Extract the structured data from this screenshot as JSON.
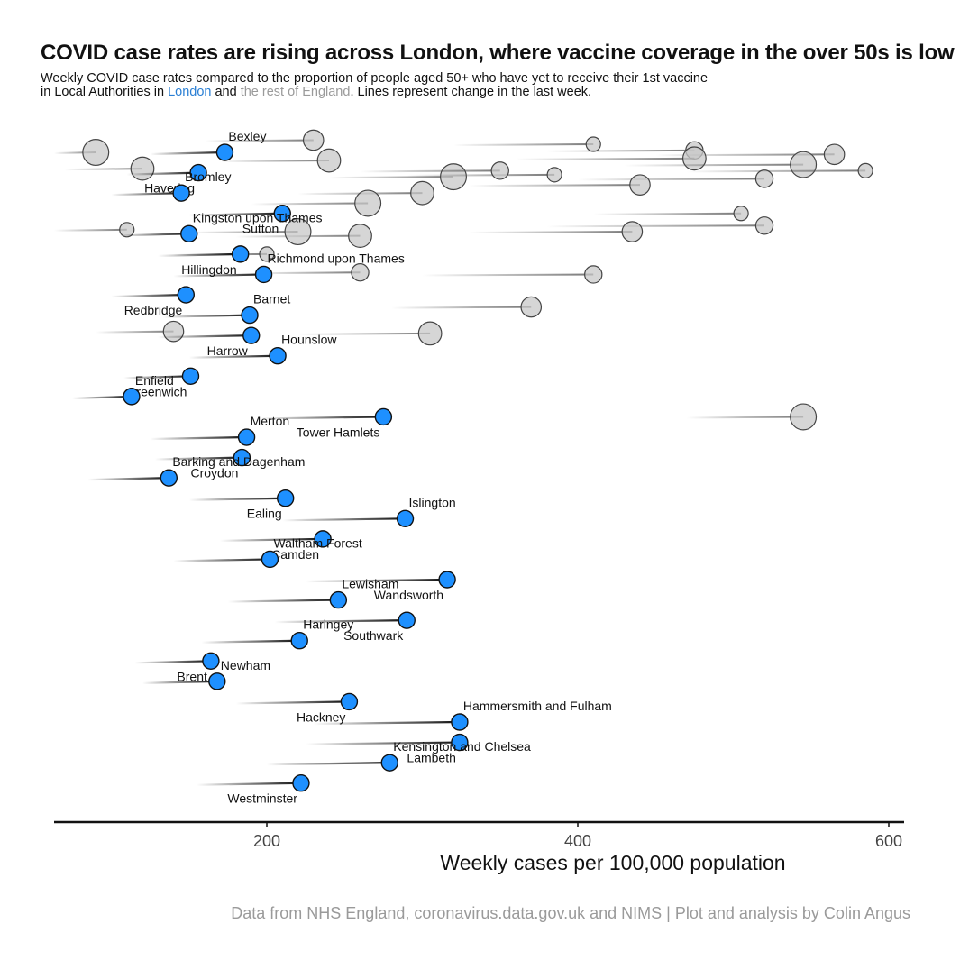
{
  "title": "COVID case rates are rising across London, where vaccine coverage in the over 50s is low",
  "subtitle": {
    "part1": "Weekly COVID case rates compared to the proportion of people aged 50+ who have yet to receive their 1st vaccine",
    "part2": "in Local Authorities in",
    "london": "London",
    "and": "and",
    "rest": "the rest of England",
    "part3": ". Lines represent change in the last week."
  },
  "caption": "Data from NHS England, coronavirus.data.gov.uk and NIMS | Plot and analysis by Colin Angus",
  "colors": {
    "london": "#1e90ff",
    "rest": "#c8c8c8",
    "london_text": "#2a7fd4",
    "rest_text": "#9a9a9a"
  },
  "chart_data": {
    "type": "scatter",
    "xlabel": "Weekly cases per 100,000 population",
    "ylabel": "",
    "xlim": [
      60,
      600
    ],
    "xticks": [
      "200",
      "400",
      "600"
    ],
    "grid": false,
    "london": [
      {
        "name": "Bexley",
        "x": 173,
        "x_prev": 125,
        "rank": 1
      },
      {
        "name": "Havering",
        "x": 156,
        "x_prev": 110,
        "rank": 2
      },
      {
        "name": "Bromley",
        "x": 145,
        "x_prev": 100,
        "rank": 3
      },
      {
        "name": "Sutton",
        "x": 210,
        "x_prev": 150,
        "rank": 4
      },
      {
        "name": "Kingston upon Thames",
        "x": 150,
        "x_prev": 105,
        "rank": 5
      },
      {
        "name": "Hillingdon",
        "x": 183,
        "x_prev": 130,
        "rank": 6
      },
      {
        "name": "Richmond upon Thames",
        "x": 198,
        "x_prev": 140,
        "rank": 7
      },
      {
        "name": "Redbridge",
        "x": 148,
        "x_prev": 100,
        "rank": 8
      },
      {
        "name": "Barnet",
        "x": 189,
        "x_prev": 133,
        "rank": 9
      },
      {
        "name": "Harrow",
        "x": 190,
        "x_prev": 130,
        "rank": 10
      },
      {
        "name": "Hounslow",
        "x": 207,
        "x_prev": 150,
        "rank": 11
      },
      {
        "name": "Greenwich",
        "x": 151,
        "x_prev": 108,
        "rank": 12
      },
      {
        "name": "Enfield",
        "x": 113,
        "x_prev": 75,
        "rank": 13
      },
      {
        "name": "Tower Hamlets",
        "x": 275,
        "x_prev": 195,
        "rank": 14
      },
      {
        "name": "Merton",
        "x": 187,
        "x_prev": 125,
        "rank": 15
      },
      {
        "name": "Croydon",
        "x": 184,
        "x_prev": 128,
        "rank": 16
      },
      {
        "name": "Barking and Dagenham",
        "x": 137,
        "x_prev": 85,
        "rank": 17
      },
      {
        "name": "Ealing",
        "x": 212,
        "x_prev": 150,
        "rank": 18
      },
      {
        "name": "Islington",
        "x": 289,
        "x_prev": 210,
        "rank": 19
      },
      {
        "name": "Camden",
        "x": 236,
        "x_prev": 170,
        "rank": 20
      },
      {
        "name": "Waltham Forest",
        "x": 202,
        "x_prev": 140,
        "rank": 21
      },
      {
        "name": "Wandsworth",
        "x": 316,
        "x_prev": 225,
        "rank": 22
      },
      {
        "name": "Lewisham",
        "x": 246,
        "x_prev": 175,
        "rank": 23
      },
      {
        "name": "Southwark",
        "x": 290,
        "x_prev": 205,
        "rank": 24
      },
      {
        "name": "Haringey",
        "x": 221,
        "x_prev": 158,
        "rank": 25
      },
      {
        "name": "Brent",
        "x": 164,
        "x_prev": 115,
        "rank": 26
      },
      {
        "name": "Newham",
        "x": 168,
        "x_prev": 120,
        "rank": 27
      },
      {
        "name": "Hackney",
        "x": 253,
        "x_prev": 180,
        "rank": 28
      },
      {
        "name": "Hammersmith and Fulham",
        "x": 324,
        "x_prev": 230,
        "rank": 29
      },
      {
        "name": "Lambeth",
        "x": 324,
        "x_prev": 225,
        "rank": 30
      },
      {
        "name": "Kensington and Chelsea",
        "x": 279,
        "x_prev": 200,
        "rank": 31
      },
      {
        "name": "Westminster",
        "x": 222,
        "x_prev": 155,
        "rank": 32
      }
    ],
    "rest_of_england": [
      {
        "x": 410,
        "x_prev": 320,
        "rank": 0.6
      },
      {
        "x": 475,
        "x_prev": 380,
        "rank": 0.9
      },
      {
        "x": 565,
        "x_prev": 450,
        "rank": 1.1
      },
      {
        "x": 475,
        "x_prev": 360,
        "rank": 1.3
      },
      {
        "x": 545,
        "x_prev": 430,
        "rank": 1.6
      },
      {
        "x": 585,
        "x_prev": 470,
        "rank": 1.9
      },
      {
        "x": 520,
        "x_prev": 400,
        "rank": 2.3
      },
      {
        "x": 440,
        "x_prev": 330,
        "rank": 2.6
      },
      {
        "x": 300,
        "x_prev": 220,
        "rank": 3.0
      },
      {
        "x": 265,
        "x_prev": 190,
        "rank": 3.5
      },
      {
        "x": 505,
        "x_prev": 410,
        "rank": 4.0
      },
      {
        "x": 520,
        "x_prev": 380,
        "rank": 4.6
      },
      {
        "x": 435,
        "x_prev": 330,
        "rank": 4.9
      },
      {
        "x": 260,
        "x_prev": 180,
        "rank": 5.1
      },
      {
        "x": 220,
        "x_prev": 150,
        "rank": 4.9
      },
      {
        "x": 110,
        "x_prev": 60,
        "rank": 4.8
      },
      {
        "x": 410,
        "x_prev": 300,
        "rank": 7.0
      },
      {
        "x": 370,
        "x_prev": 280,
        "rank": 8.6
      },
      {
        "x": 305,
        "x_prev": 220,
        "rank": 9.9
      },
      {
        "x": 545,
        "x_prev": 470,
        "rank": 14.0
      },
      {
        "x": 200,
        "x_prev": 140,
        "rank": 6.0
      },
      {
        "x": 260,
        "x_prev": 190,
        "rank": 6.9
      },
      {
        "x": 140,
        "x_prev": 90,
        "rank": 9.8
      },
      {
        "x": 240,
        "x_prev": 170,
        "rank": 1.4
      },
      {
        "x": 320,
        "x_prev": 240,
        "rank": 2.2
      },
      {
        "x": 385,
        "x_prev": 290,
        "rank": 2.1
      },
      {
        "x": 350,
        "x_prev": 260,
        "rank": 1.9
      },
      {
        "x": 230,
        "x_prev": 160,
        "rank": 0.4
      },
      {
        "x": 120,
        "x_prev": 70,
        "rank": 1.8
      },
      {
        "x": 90,
        "x_prev": 60,
        "rank": 1.0
      }
    ]
  }
}
